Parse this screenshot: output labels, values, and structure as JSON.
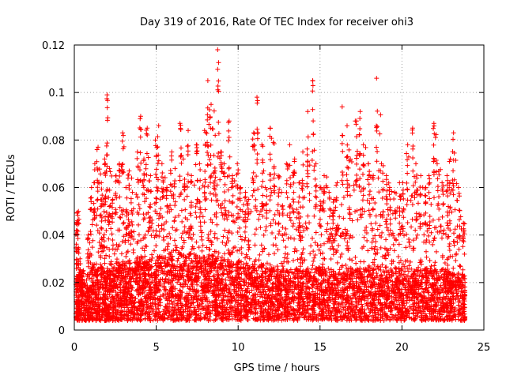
{
  "chart_data": {
    "type": "scatter",
    "title": "Day 319 of 2016, Rate Of TEC Index for receiver ohi3",
    "xlabel": "GPS time / hours",
    "ylabel": "ROTI / TECUs",
    "xlim": [
      0,
      25
    ],
    "ylim": [
      0,
      0.12
    ],
    "xticks": [
      0,
      5,
      10,
      15,
      20,
      25
    ],
    "yticks": [
      0,
      0.02,
      0.04,
      0.06,
      0.08,
      0.1,
      0.12
    ],
    "xtick_labels": [
      "0",
      "5",
      "10",
      "15",
      "20",
      "25"
    ],
    "ytick_labels": [
      "0",
      "0.02",
      "0.04",
      "0.06",
      "0.08",
      "0.1",
      "0.12"
    ],
    "grid": true,
    "marker": "+",
    "series": [
      {
        "name": "ROTI",
        "color": "#ff0000",
        "x": [
          0.1,
          0.2,
          0.3,
          0.5,
          0.8,
          1.0,
          1.2,
          1.4,
          1.6,
          1.8,
          1.95,
          2.1,
          2.3,
          2.5,
          2.7,
          2.9,
          3.1,
          3.3,
          3.5,
          3.8,
          4.0,
          4.2,
          4.4,
          4.6,
          4.9,
          5.1,
          5.3,
          5.6,
          5.9,
          6.1,
          6.4,
          6.6,
          6.9,
          7.1,
          7.4,
          7.6,
          7.9,
          8.1,
          8.3,
          8.55,
          8.7,
          8.9,
          9.1,
          9.4,
          9.6,
          9.9,
          10.1,
          10.4,
          10.6,
          10.9,
          11.1,
          11.4,
          11.6,
          11.9,
          12.1,
          12.4,
          12.6,
          12.9,
          13.1,
          13.4,
          13.7,
          13.9,
          14.2,
          14.5,
          14.7,
          15.0,
          15.2,
          15.5,
          15.8,
          16.0,
          16.3,
          16.6,
          16.8,
          17.1,
          17.4,
          17.6,
          17.9,
          18.2,
          18.4,
          18.7,
          19.0,
          19.2,
          19.5,
          19.8,
          20.0,
          20.3,
          20.6,
          20.8,
          21.1,
          21.4,
          21.6,
          21.9,
          22.1,
          22.4,
          22.7,
          22.9,
          23.1,
          23.4,
          23.7
        ],
        "y": [
          0.045,
          0.05,
          0.03,
          0.025,
          0.04,
          0.06,
          0.07,
          0.077,
          0.062,
          0.072,
          0.099,
          0.068,
          0.055,
          0.065,
          0.07,
          0.083,
          0.06,
          0.067,
          0.058,
          0.075,
          0.09,
          0.072,
          0.085,
          0.065,
          0.08,
          0.086,
          0.07,
          0.06,
          0.075,
          0.068,
          0.087,
          0.072,
          0.084,
          0.065,
          0.078,
          0.07,
          0.084,
          0.105,
          0.095,
          0.082,
          0.118,
          0.075,
          0.07,
          0.088,
          0.065,
          0.07,
          0.06,
          0.058,
          0.055,
          0.083,
          0.098,
          0.078,
          0.06,
          0.085,
          0.079,
          0.065,
          0.058,
          0.07,
          0.078,
          0.072,
          0.062,
          0.075,
          0.092,
          0.105,
          0.07,
          0.06,
          0.065,
          0.058,
          0.055,
          0.062,
          0.094,
          0.086,
          0.072,
          0.088,
          0.092,
          0.078,
          0.07,
          0.065,
          0.106,
          0.07,
          0.065,
          0.06,
          0.058,
          0.062,
          0.062,
          0.078,
          0.085,
          0.07,
          0.065,
          0.06,
          0.065,
          0.087,
          0.07,
          0.062,
          0.065,
          0.072,
          0.083,
          0.06,
          0.045
        ],
        "baseline": [
          0.013,
          0.015,
          0.014,
          0.012,
          0.014,
          0.016,
          0.015,
          0.016,
          0.017,
          0.015,
          0.016,
          0.018,
          0.016,
          0.017,
          0.018,
          0.019,
          0.017,
          0.018,
          0.019,
          0.02,
          0.021,
          0.02,
          0.019,
          0.02,
          0.022,
          0.021,
          0.022,
          0.023,
          0.022,
          0.024,
          0.023,
          0.022,
          0.023,
          0.022,
          0.021,
          0.022,
          0.021,
          0.02,
          0.022,
          0.021,
          0.02,
          0.019,
          0.02,
          0.019,
          0.018,
          0.019,
          0.017,
          0.018,
          0.017,
          0.018,
          0.017,
          0.018,
          0.017,
          0.016,
          0.017,
          0.016,
          0.017,
          0.016,
          0.015,
          0.016,
          0.015,
          0.016,
          0.015,
          0.016,
          0.017,
          0.016,
          0.015,
          0.016,
          0.015,
          0.016,
          0.015,
          0.016,
          0.017,
          0.016,
          0.015,
          0.016,
          0.017,
          0.016,
          0.017,
          0.016,
          0.015,
          0.016,
          0.017,
          0.016,
          0.015,
          0.016,
          0.015,
          0.016,
          0.015,
          0.016,
          0.015,
          0.016,
          0.015,
          0.016,
          0.015,
          0.014,
          0.015,
          0.014,
          0.013
        ]
      }
    ]
  }
}
